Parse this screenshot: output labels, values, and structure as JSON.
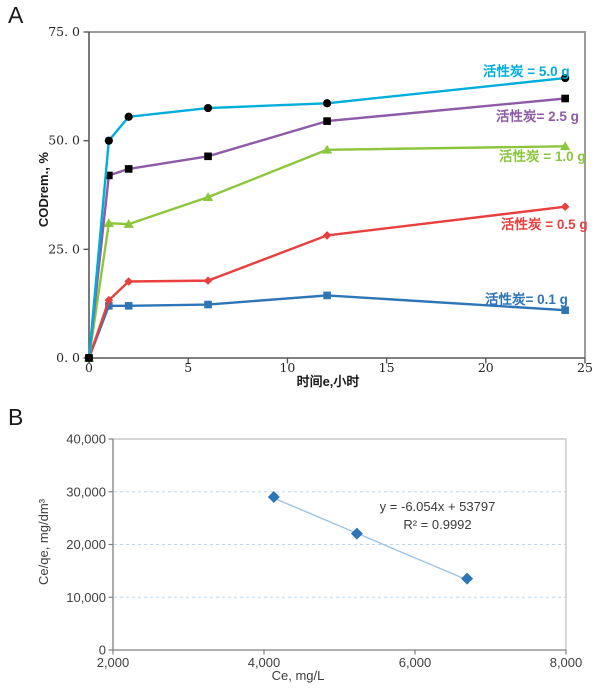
{
  "panels": {
    "a": {
      "label": "A"
    },
    "b": {
      "label": "B"
    }
  },
  "colors": {
    "series_5_0g": "#00AEDB",
    "series_2_5g": "#8E5BA8",
    "series_1_0g": "#8CC63E",
    "series_0_5g": "#E8403F",
    "series_0_1g": "#2E75B6",
    "axis_a": "#595959",
    "border_a": "#9c9c9c",
    "axis_b": "#808080",
    "border_b": "#bfbfbf",
    "grid_b": "#BDD7EE",
    "trendline_b": "#9DC3E6",
    "marker_b": "#2E75B6",
    "text_dark": "#262626",
    "text_b": "#404040"
  },
  "chart_data": [
    {
      "id": "A",
      "type": "line",
      "title": "",
      "xlabel": "时间e,小时",
      "ylabel": "CODrem., %",
      "xlim": [
        0,
        25
      ],
      "ylim": [
        0,
        75
      ],
      "grid": false,
      "legend_position": "inline labels at right of each line",
      "xticks": [
        0,
        5,
        10,
        15,
        20,
        25
      ],
      "xtick_labels": [
        "0",
        "5",
        "10",
        "15",
        "20",
        "25"
      ],
      "yticks": [
        0,
        25,
        50,
        75
      ],
      "ytick_labels": [
        "0. 0",
        "25. 0",
        "50. 0",
        "75. 0"
      ],
      "x": [
        0,
        1,
        2,
        6,
        12,
        24
      ],
      "series": [
        {
          "name": "活性炭 = 5.0 g",
          "color": "#00AEDB",
          "marker": "circle",
          "marker_color": "#000000",
          "values": [
            0,
            50,
            55.5,
            57.5,
            58.6,
            64.4
          ]
        },
        {
          "name": "活性炭= 2.5 g",
          "color": "#8E5BA8",
          "marker": "square",
          "marker_color": "#000000",
          "values": [
            0,
            42,
            43.5,
            46.4,
            54.5,
            59.7
          ]
        },
        {
          "name": "活性炭 = 1.0 g",
          "color": "#8CC63E",
          "marker": "triangle",
          "marker_color": "#8CC63E",
          "values": [
            0,
            31,
            30.8,
            37,
            47.9,
            48.7
          ]
        },
        {
          "name": "活性炭 = 0.5 g",
          "color": "#E8403F",
          "marker": "diamond",
          "marker_color": "#E8403F",
          "values": [
            0,
            13.3,
            17.6,
            17.8,
            28.2,
            34.8
          ]
        },
        {
          "name": "活性炭= 0.1 g",
          "color": "#2E75B6",
          "marker": "square",
          "marker_color": "#2E75B6",
          "values": [
            0,
            12,
            12,
            12.3,
            14.4,
            11
          ]
        }
      ]
    },
    {
      "id": "B",
      "type": "scatter",
      "title": "",
      "xlabel": "Ce, mg/L",
      "ylabel": "Ce/qe, mg/dm³",
      "xlim": [
        2000,
        8000
      ],
      "ylim": [
        0,
        40000
      ],
      "grid": "horizontal dashed",
      "xticks": [
        2000,
        4000,
        6000,
        8000
      ],
      "xtick_labels": [
        "2,000",
        "4,000",
        "6,000",
        "8,000"
      ],
      "yticks": [
        0,
        10000,
        20000,
        30000,
        40000
      ],
      "ytick_labels": [
        "0",
        "10,000",
        "20,000",
        "30,000",
        "40,000"
      ],
      "points": [
        [
          4130,
          29000
        ],
        [
          5230,
          22050
        ],
        [
          6690,
          13540
        ]
      ],
      "trendline": {
        "slope": -6.054,
        "intercept": 53797,
        "equation": "y = -6.054x + 53797",
        "r2": "R² = 0.9992",
        "x_start": 4130,
        "x_end": 6690
      }
    }
  ]
}
